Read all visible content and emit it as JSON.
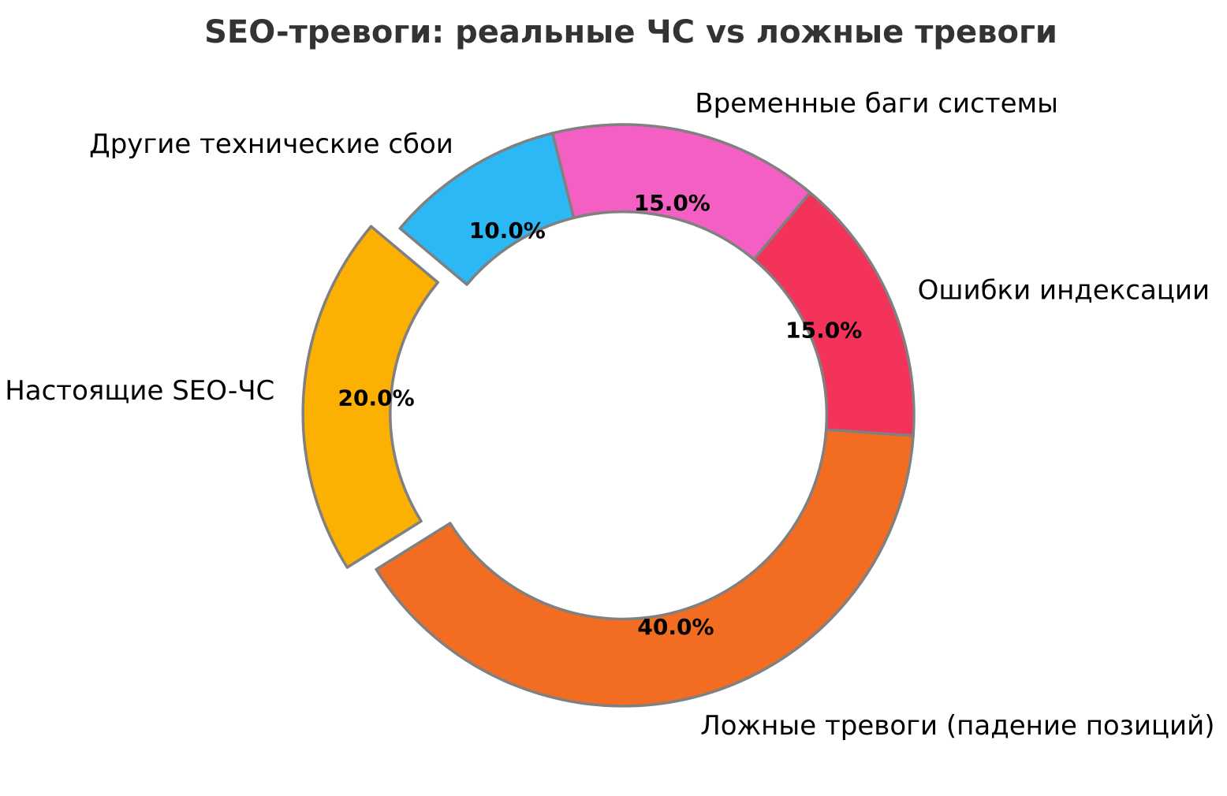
{
  "title": "SEO-тревоги: реальные ЧС vs ложные тревоги",
  "chart_data": {
    "type": "pie",
    "subtype": "donut",
    "title": "SEO-тревоги: реальные ЧС vs ложные тревоги",
    "units": "percent",
    "start_angle_deg": 140,
    "counterclockwise": true,
    "ring_width_fraction": 0.3,
    "pct_distance": 0.75,
    "label_distance": 1.1,
    "edge_color": "#808080",
    "edge_width": 3.5,
    "slices": [
      {
        "label": "Настоящие SEO-ЧС",
        "value": 20.0,
        "pct_label": "20.0%",
        "color": "#FCB001",
        "explode": 0.1
      },
      {
        "label": "Ложные тревоги (падение позиций)",
        "value": 40.0,
        "pct_label": "40.0%",
        "color": "#F26D21",
        "explode": 0
      },
      {
        "label": "Ошибки индексации",
        "value": 15.0,
        "pct_label": "15.0%",
        "color": "#F3335A",
        "explode": 0
      },
      {
        "label": "Временные баги системы",
        "value": 15.0,
        "pct_label": "15.0%",
        "color": "#F45FC3",
        "explode": 0
      },
      {
        "label": "Другие технические сбои",
        "value": 10.0,
        "pct_label": "10.0%",
        "color": "#2BB8F5",
        "explode": 0
      }
    ]
  }
}
